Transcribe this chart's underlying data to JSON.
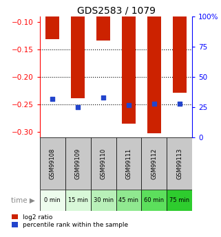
{
  "title": "GDS2583 / 1079",
  "samples": [
    "GSM99108",
    "GSM99109",
    "GSM99110",
    "GSM99111",
    "GSM99112",
    "GSM99113"
  ],
  "time_labels": [
    "0 min",
    "15 min",
    "30 min",
    "45 min",
    "60 min",
    "75 min"
  ],
  "log2_ratio": [
    -0.131,
    -0.238,
    -0.133,
    -0.285,
    -0.302,
    -0.228
  ],
  "percentile_rank": [
    32,
    25,
    33,
    27,
    28,
    28
  ],
  "ylim_left": [
    -0.31,
    -0.09
  ],
  "ylim_right": [
    0,
    100
  ],
  "yticks_left": [
    -0.3,
    -0.25,
    -0.2,
    -0.15,
    -0.1
  ],
  "yticks_right": [
    0,
    25,
    50,
    75,
    100
  ],
  "bar_color": "#cc2200",
  "dot_color": "#2244cc",
  "background_plot": "#ffffff",
  "background_label": "#c8c8c8",
  "time_colors": [
    "#edfced",
    "#d8f8d8",
    "#b8f0b8",
    "#90e890",
    "#5cdf5c",
    "#2ecc2e"
  ],
  "title_fontsize": 10,
  "tick_fontsize": 7.5,
  "bar_width": 0.55,
  "gridline_ticks": [
    -0.15,
    -0.2,
    -0.25
  ],
  "legend_labels": [
    "log2 ratio",
    "percentile rank within the sample"
  ]
}
